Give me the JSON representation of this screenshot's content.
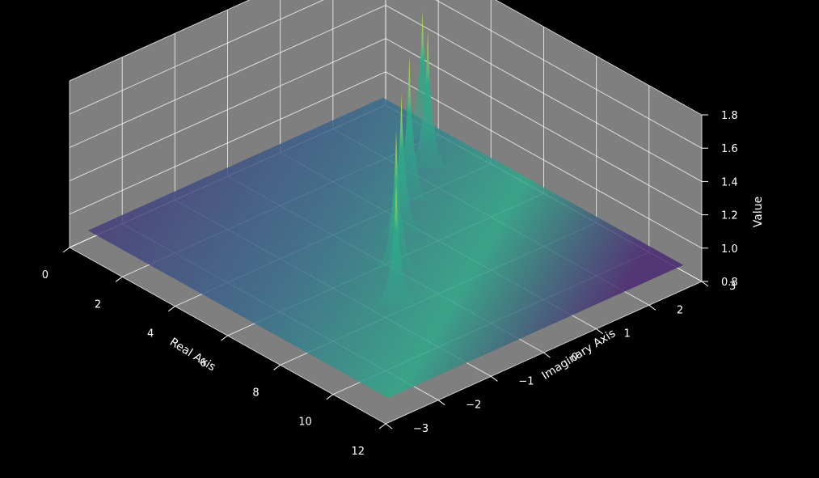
{
  "chart_data": {
    "type": "surface",
    "xlabel": "Real Axis",
    "ylabel": "Imaginary Axis",
    "zlabel": "Value",
    "x_range": [
      0,
      12
    ],
    "y_range": [
      -3,
      3
    ],
    "z_range": [
      0.8,
      1.8
    ],
    "x_ticks": [
      "0",
      "2",
      "4",
      "6",
      "8",
      "10",
      "12"
    ],
    "y_ticks": [
      "−3",
      "−2",
      "−1",
      "0",
      "1",
      "2",
      "3"
    ],
    "z_ticks": [
      "0.8",
      "1.0",
      "1.2",
      "1.4",
      "1.6",
      "1.8"
    ],
    "base_value": 0.9,
    "colormap": "viridis",
    "grid": true,
    "peaks": [
      {
        "x": 2.4,
        "y": 2.5,
        "value": 1.65
      },
      {
        "x": 3.6,
        "y": 2.0,
        "value": 1.72
      },
      {
        "x": 4.5,
        "y": 1.2,
        "value": 1.75
      },
      {
        "x": 5.6,
        "y": 0.5,
        "value": 1.72
      },
      {
        "x": 6.8,
        "y": -0.2,
        "value": 1.7
      },
      {
        "x": 8.2,
        "y": -0.9,
        "value": 1.62
      }
    ],
    "colors": {
      "background": "#000000",
      "pane": "#7f7f7f",
      "grid": "#ffffff",
      "surface_low": "#4b2a73",
      "surface_mid": "#3a6b8c",
      "surface_high": "#2fa98a",
      "peak_tip": "#d5e635"
    }
  }
}
